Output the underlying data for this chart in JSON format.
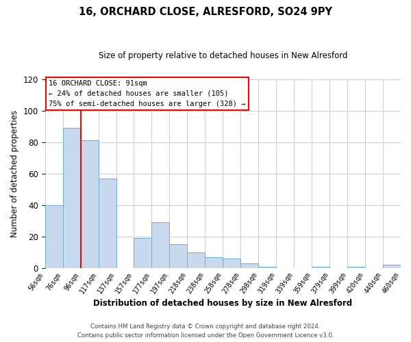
{
  "title": "16, ORCHARD CLOSE, ALRESFORD, SO24 9PY",
  "subtitle": "Size of property relative to detached houses in New Alresford",
  "xlabel": "Distribution of detached houses by size in New Alresford",
  "ylabel": "Number of detached properties",
  "bar_labels": [
    "56sqm",
    "76sqm",
    "96sqm",
    "117sqm",
    "137sqm",
    "157sqm",
    "177sqm",
    "197sqm",
    "218sqm",
    "238sqm",
    "258sqm",
    "278sqm",
    "298sqm",
    "319sqm",
    "339sqm",
    "359sqm",
    "379sqm",
    "399sqm",
    "420sqm",
    "440sqm",
    "460sqm"
  ],
  "bar_values": [
    40,
    89,
    81,
    57,
    0,
    19,
    29,
    15,
    10,
    7,
    6,
    3,
    1,
    0,
    0,
    1,
    0,
    1,
    0,
    2
  ],
  "bar_color": "#c8d9ed",
  "bar_edge_color": "#6aaed6",
  "background_color": "#ffffff",
  "grid_color": "#d0d0d0",
  "ylim": [
    0,
    120
  ],
  "yticks": [
    0,
    20,
    40,
    60,
    80,
    100,
    120
  ],
  "red_line_x": 2,
  "annotation_title": "16 ORCHARD CLOSE: 91sqm",
  "annotation_line1": "← 24% of detached houses are smaller (105)",
  "annotation_line2": "75% of semi-detached houses are larger (328) →",
  "footer1": "Contains HM Land Registry data © Crown copyright and database right 2024.",
  "footer2": "Contains public sector information licensed under the Open Government Licence v3.0."
}
